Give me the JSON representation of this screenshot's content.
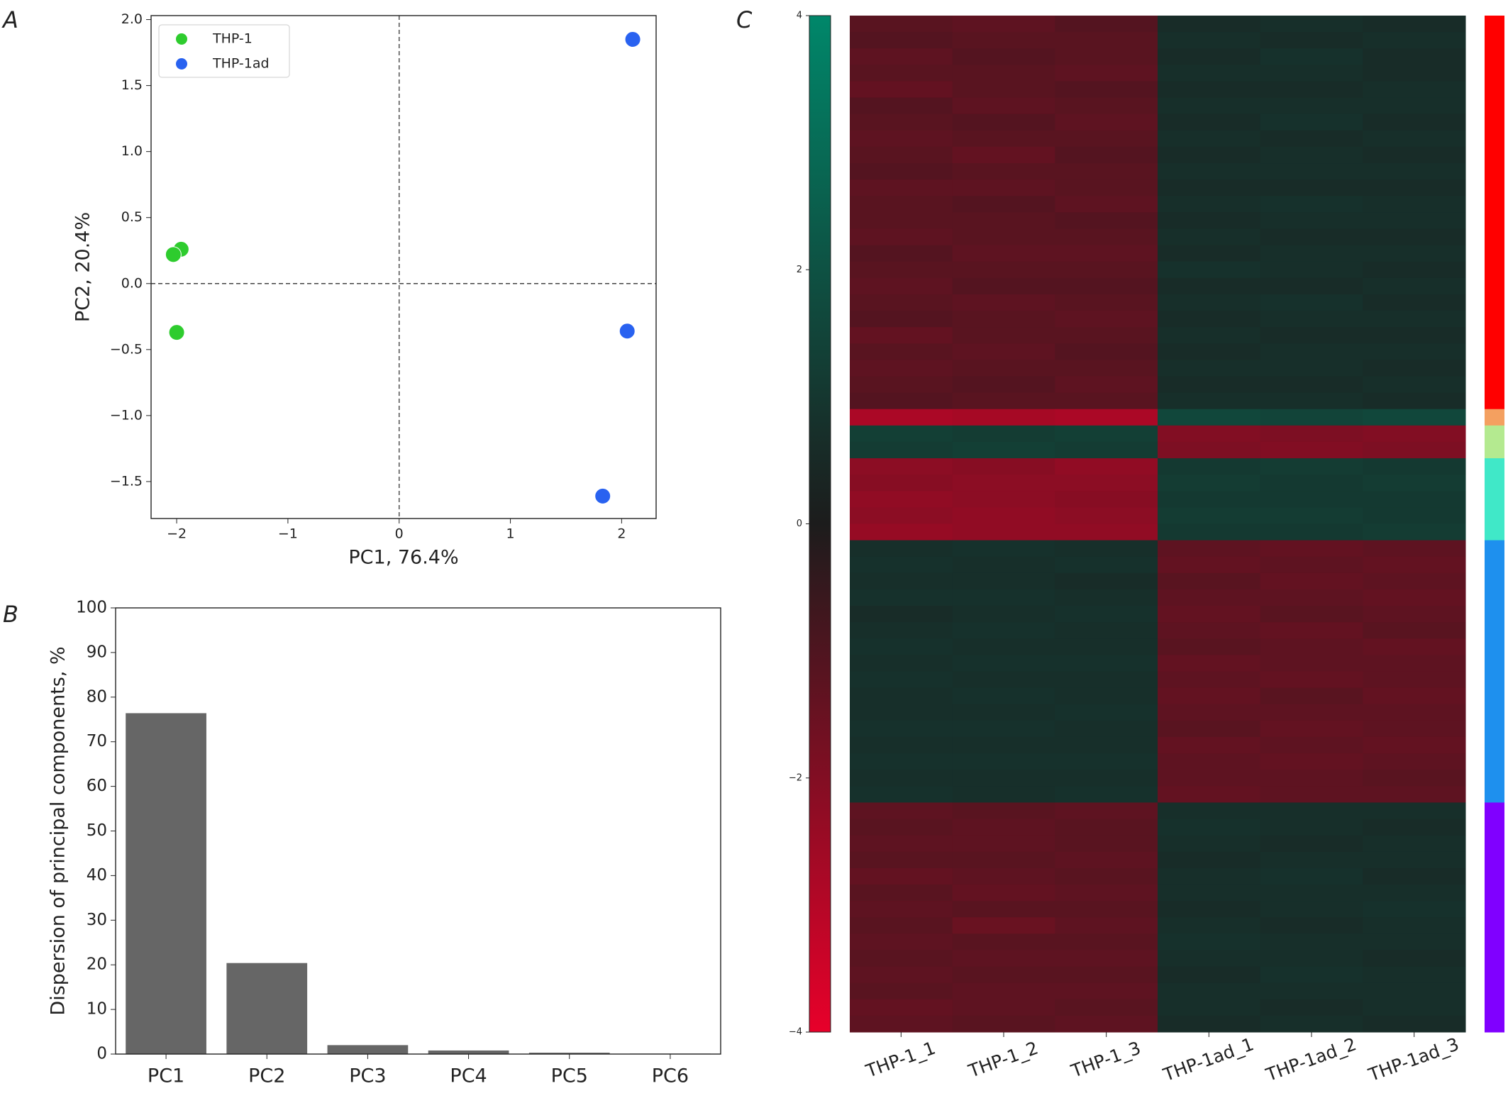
{
  "chart_data": [
    {
      "type": "scatter",
      "panel": "A",
      "xlabel": "PC1, 76.4%",
      "ylabel": "PC2, 20.4%",
      "series": [
        {
          "name": "THP-1",
          "color": "#2ecc2e",
          "x": [
            -1.96,
            -2.03,
            -2.0
          ],
          "y": [
            0.26,
            0.22,
            -0.37
          ]
        },
        {
          "name": "THP-1ad",
          "color": "#2962f0",
          "x": [
            2.1,
            2.05,
            1.83
          ],
          "y": [
            1.85,
            -0.36,
            -1.61
          ]
        }
      ],
      "xlim": [
        -2.23,
        2.31
      ],
      "ylim": [
        -1.78,
        2.03
      ],
      "xticks": [
        {
          "value": -2,
          "label": "−2"
        },
        {
          "value": -1,
          "label": "−1"
        },
        0,
        1,
        2
      ],
      "yticks": [
        {
          "value": -1.5,
          "label": "−1.5"
        },
        {
          "value": -1.0,
          "label": "−1.0"
        },
        {
          "value": -0.5,
          "label": "−0.5"
        },
        {
          "value": 0,
          "label": "0.0"
        },
        0.5,
        {
          "value": 1,
          "label": "1.0"
        },
        1.5,
        {
          "value": 2,
          "label": "2.0"
        }
      ],
      "hline": 0,
      "vline": 0,
      "legend": "upper left"
    },
    {
      "type": "bar",
      "panel": "B",
      "ylabel": "Dispersion of principal components, %",
      "categories": [
        "PC1",
        "PC2",
        "PC3",
        "PC4",
        "PC5",
        "PC6"
      ],
      "values": [
        76.4,
        20.4,
        2.0,
        0.8,
        0.3,
        0.1
      ],
      "color": "#666666",
      "ylim": [
        0,
        100
      ],
      "yticks": [
        0,
        10,
        20,
        30,
        40,
        50,
        60,
        70,
        80,
        90,
        100
      ]
    },
    {
      "type": "heatmap",
      "panel": "C",
      "columns": [
        "THP-1_1",
        "THP-1_2",
        "THP-1_3",
        "THP-1ad_1",
        "THP-1ad_2",
        "THP-1ad_3"
      ],
      "vlim": [
        -4,
        4
      ],
      "ticks": [
        {
          "value": -4,
          "label": "−4"
        },
        {
          "value": -2,
          "label": "−2"
        },
        0,
        2,
        4
      ],
      "colormap": [
        "#e8002a",
        "#1c1c1c",
        "#00876a"
      ],
      "matrix": [
        [
          -1.2,
          -1.3,
          -1.1,
          0.6,
          0.7,
          0.6
        ],
        [
          -1.1,
          -1.2,
          -1.2,
          0.7,
          0.6,
          0.7
        ],
        [
          -1.3,
          -1.1,
          -1.2,
          0.6,
          0.8,
          0.6
        ],
        [
          -1.2,
          -1.2,
          -1.3,
          0.7,
          0.7,
          0.6
        ],
        [
          -1.4,
          -1.2,
          -1.1,
          0.6,
          0.6,
          0.7
        ],
        [
          -1.1,
          -1.3,
          -1.2,
          0.7,
          0.7,
          0.7
        ],
        [
          -1.2,
          -1.1,
          -1.3,
          0.6,
          0.8,
          0.6
        ],
        [
          -1.3,
          -1.2,
          -1.2,
          0.7,
          0.6,
          0.7
        ],
        [
          -1.2,
          -1.4,
          -1.1,
          0.6,
          0.7,
          0.6
        ],
        [
          -1.1,
          -1.2,
          -1.2,
          0.7,
          0.7,
          0.7
        ],
        [
          -1.3,
          -1.3,
          -1.2,
          0.6,
          0.6,
          0.6
        ],
        [
          -1.2,
          -1.1,
          -1.3,
          0.7,
          0.8,
          0.7
        ],
        [
          -1.2,
          -1.2,
          -1.1,
          0.6,
          0.7,
          0.7
        ],
        [
          -1.3,
          -1.2,
          -1.2,
          0.7,
          0.6,
          0.6
        ],
        [
          -1.1,
          -1.3,
          -1.3,
          0.6,
          0.7,
          0.7
        ],
        [
          -1.2,
          -1.2,
          -1.2,
          0.8,
          0.7,
          0.6
        ],
        [
          -1.3,
          -1.1,
          -1.1,
          0.6,
          0.6,
          0.7
        ],
        [
          -1.2,
          -1.3,
          -1.2,
          0.7,
          0.8,
          0.6
        ],
        [
          -1.1,
          -1.2,
          -1.3,
          0.6,
          0.7,
          0.7
        ],
        [
          -1.4,
          -1.2,
          -1.2,
          0.7,
          0.6,
          0.6
        ],
        [
          -1.2,
          -1.3,
          -1.1,
          0.6,
          0.7,
          0.7
        ],
        [
          -1.3,
          -1.2,
          -1.2,
          0.7,
          0.7,
          0.6
        ],
        [
          -1.2,
          -1.1,
          -1.3,
          0.6,
          0.6,
          0.7
        ],
        [
          -1.1,
          -1.2,
          -1.2,
          0.7,
          0.7,
          0.6
        ],
        [
          -2.8,
          -2.7,
          -2.8,
          1.6,
          1.5,
          1.6
        ],
        [
          1.3,
          1.2,
          1.3,
          -2.0,
          -1.9,
          -2.0
        ],
        [
          1.2,
          1.3,
          1.2,
          -1.9,
          -2.0,
          -1.9
        ],
        [
          -2.2,
          -2.1,
          -2.3,
          1.1,
          1.2,
          1.1
        ],
        [
          -2.1,
          -2.2,
          -2.2,
          1.2,
          1.1,
          1.2
        ],
        [
          -2.3,
          -2.2,
          -2.1,
          1.1,
          1.1,
          1.1
        ],
        [
          -2.2,
          -2.3,
          -2.2,
          1.2,
          1.2,
          1.1
        ],
        [
          -2.4,
          -2.3,
          -2.3,
          1.1,
          1.1,
          1.2
        ],
        [
          0.7,
          0.8,
          0.7,
          -1.3,
          -1.4,
          -1.3
        ],
        [
          0.8,
          0.7,
          0.8,
          -1.4,
          -1.3,
          -1.4
        ],
        [
          0.7,
          0.7,
          0.6,
          -1.2,
          -1.4,
          -1.3
        ],
        [
          0.8,
          0.8,
          0.7,
          -1.3,
          -1.3,
          -1.4
        ],
        [
          0.6,
          0.7,
          0.8,
          -1.4,
          -1.2,
          -1.3
        ],
        [
          0.7,
          0.8,
          0.7,
          -1.3,
          -1.4,
          -1.2
        ],
        [
          0.8,
          0.7,
          0.7,
          -1.2,
          -1.3,
          -1.4
        ],
        [
          0.7,
          0.8,
          0.8,
          -1.4,
          -1.3,
          -1.3
        ],
        [
          0.8,
          0.7,
          0.7,
          -1.3,
          -1.4,
          -1.3
        ],
        [
          0.7,
          0.8,
          0.7,
          -1.4,
          -1.2,
          -1.4
        ],
        [
          0.7,
          0.7,
          0.8,
          -1.3,
          -1.3,
          -1.3
        ],
        [
          0.8,
          0.8,
          0.7,
          -1.2,
          -1.4,
          -1.3
        ],
        [
          0.7,
          0.7,
          0.7,
          -1.4,
          -1.3,
          -1.4
        ],
        [
          0.8,
          0.8,
          0.8,
          -1.3,
          -1.4,
          -1.3
        ],
        [
          0.7,
          0.7,
          0.7,
          -1.3,
          -1.3,
          -1.2
        ],
        [
          0.8,
          0.7,
          0.8,
          -1.4,
          -1.3,
          -1.3
        ],
        [
          -1.3,
          -1.2,
          -1.3,
          0.7,
          0.7,
          0.7
        ],
        [
          -1.2,
          -1.3,
          -1.2,
          0.8,
          0.7,
          0.6
        ],
        [
          -1.3,
          -1.3,
          -1.2,
          0.7,
          0.6,
          0.7
        ],
        [
          -1.2,
          -1.2,
          -1.3,
          0.6,
          0.7,
          0.7
        ],
        [
          -1.4,
          -1.3,
          -1.2,
          0.7,
          0.8,
          0.6
        ],
        [
          -1.2,
          -1.4,
          -1.3,
          0.7,
          0.7,
          0.7
        ],
        [
          -1.3,
          -1.2,
          -1.2,
          0.6,
          0.7,
          0.8
        ],
        [
          -1.2,
          -1.5,
          -1.3,
          0.7,
          0.6,
          0.7
        ],
        [
          -1.3,
          -1.2,
          -1.2,
          0.8,
          0.7,
          0.7
        ],
        [
          -1.2,
          -1.3,
          -1.3,
          0.7,
          0.7,
          0.6
        ],
        [
          -1.3,
          -1.2,
          -1.2,
          0.6,
          0.8,
          0.7
        ],
        [
          -1.2,
          -1.3,
          -1.3,
          0.7,
          0.7,
          0.7
        ],
        [
          -1.4,
          -1.3,
          -1.2,
          0.7,
          0.6,
          0.7
        ],
        [
          -1.3,
          -1.2,
          -1.3,
          0.6,
          0.7,
          0.6
        ]
      ],
      "row_colors": [
        "#ff0000",
        "#ff0000",
        "#ff0000",
        "#ff0000",
        "#ff0000",
        "#ff0000",
        "#ff0000",
        "#ff0000",
        "#ff0000",
        "#ff0000",
        "#ff0000",
        "#ff0000",
        "#ff0000",
        "#ff0000",
        "#ff0000",
        "#ff0000",
        "#ff0000",
        "#ff0000",
        "#ff0000",
        "#ff0000",
        "#ff0000",
        "#ff0000",
        "#ff0000",
        "#ff0000",
        "#f4a060",
        "#b4ea90",
        "#b4ea90",
        "#40e8c8",
        "#40e8c8",
        "#40e8c8",
        "#40e8c8",
        "#40e8c8",
        "#1e90ee",
        "#1e90ee",
        "#1e90ee",
        "#1e90ee",
        "#1e90ee",
        "#1e90ee",
        "#1e90ee",
        "#1e90ee",
        "#1e90ee",
        "#1e90ee",
        "#1e90ee",
        "#1e90ee",
        "#1e90ee",
        "#1e90ee",
        "#1e90ee",
        "#1e90ee",
        "#8000ff",
        "#8000ff",
        "#8000ff",
        "#8000ff",
        "#8000ff",
        "#8000ff",
        "#8000ff",
        "#8000ff",
        "#8000ff",
        "#8000ff",
        "#8000ff",
        "#8000ff",
        "#8000ff",
        "#8000ff"
      ]
    }
  ]
}
